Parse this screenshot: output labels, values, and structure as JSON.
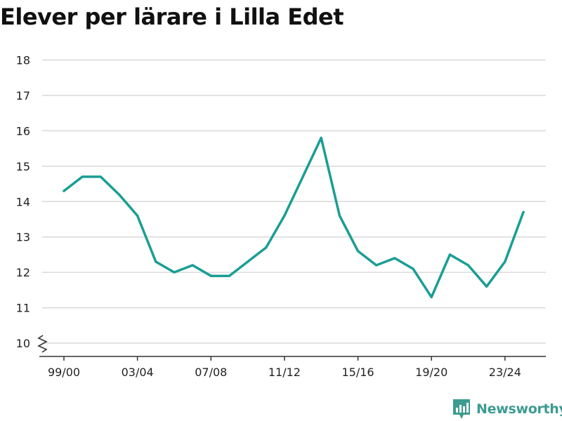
{
  "chart_data": {
    "type": "line",
    "title": "Elever per lärare i Lilla Edet",
    "xlabel": "",
    "ylabel": "",
    "x": [
      "99/00",
      "00/01",
      "01/02",
      "02/03",
      "03/04",
      "04/05",
      "05/06",
      "06/07",
      "07/08",
      "08/09",
      "09/10",
      "10/11",
      "11/12",
      "12/13",
      "13/14",
      "14/15",
      "15/16",
      "16/17",
      "17/18",
      "18/19",
      "19/20",
      "20/21",
      "21/22",
      "22/23",
      "23/24",
      "24/25"
    ],
    "x_tick_labels": [
      "99/00",
      "03/04",
      "07/08",
      "11/12",
      "15/16",
      "19/20",
      "23/24"
    ],
    "series": [
      {
        "values": [
          14.3,
          14.7,
          14.7,
          14.2,
          13.6,
          12.3,
          12.0,
          12.2,
          11.9,
          11.9,
          12.3,
          12.7,
          13.6,
          14.7,
          15.8,
          13.6,
          12.6,
          12.2,
          12.4,
          12.1,
          11.3,
          12.5,
          12.2,
          11.6,
          12.3,
          13.7
        ],
        "color": "#1a9e94"
      }
    ],
    "y_ticks": [
      10,
      11,
      12,
      13,
      14,
      15,
      16,
      17,
      18
    ],
    "ylim": [
      9.6,
      18.2
    ],
    "grid": true,
    "y_axis_break": true,
    "legend": "none"
  },
  "branding": {
    "name": "Newsworthy",
    "icon": "newsworthy-logo-icon",
    "color": "#3d9b91"
  }
}
